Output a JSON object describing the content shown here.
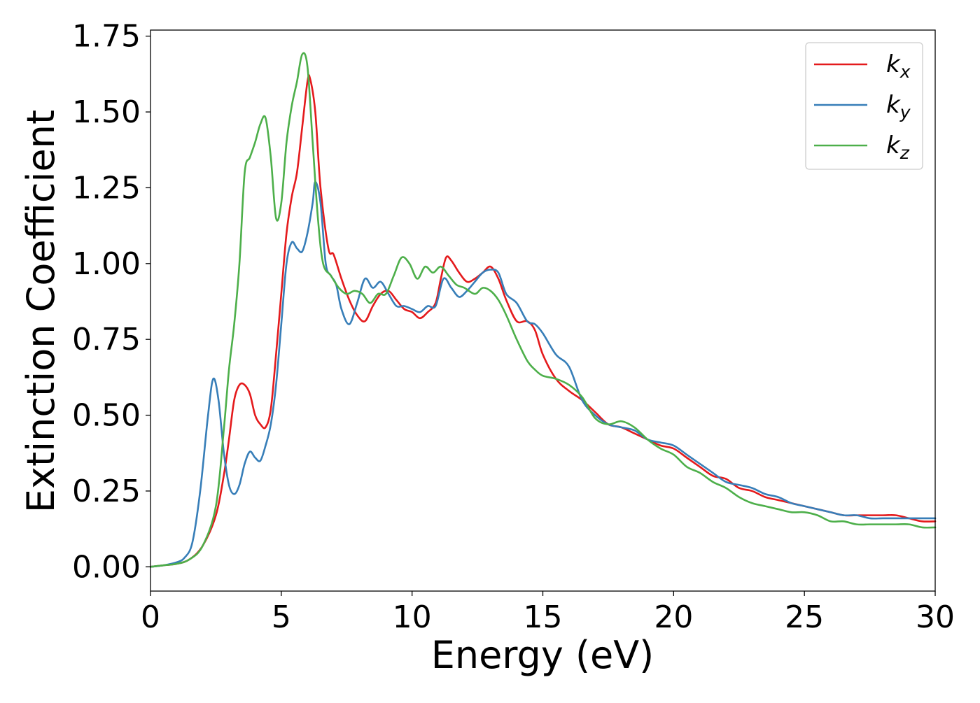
{
  "chart_data": {
    "type": "line",
    "xlabel": "Energy (eV)",
    "ylabel": "Extinction Coefficient",
    "xlim": [
      0,
      30
    ],
    "ylim": [
      -0.08,
      1.77
    ],
    "xticks": [
      0,
      5,
      10,
      15,
      20,
      25,
      30
    ],
    "xtick_labels": [
      "0",
      "5",
      "10",
      "15",
      "20",
      "25",
      "30"
    ],
    "yticks": [
      0.0,
      0.25,
      0.5,
      0.75,
      1.0,
      1.25,
      1.5,
      1.75
    ],
    "ytick_labels": [
      "0.00",
      "0.25",
      "0.50",
      "0.75",
      "1.00",
      "1.25",
      "1.50",
      "1.75"
    ],
    "grid": false,
    "legend_position": "top-right",
    "series": [
      {
        "name": "k_x",
        "legend_base": "k",
        "legend_sub": "x",
        "color": "#e41a1c",
        "points": [
          [
            0,
            0
          ],
          [
            0.5,
            0.005
          ],
          [
            1,
            0.01
          ],
          [
            1.5,
            0.025
          ],
          [
            2,
            0.07
          ],
          [
            2.5,
            0.17
          ],
          [
            2.8,
            0.3
          ],
          [
            3,
            0.42
          ],
          [
            3.2,
            0.55
          ],
          [
            3.4,
            0.6
          ],
          [
            3.6,
            0.6
          ],
          [
            3.8,
            0.57
          ],
          [
            4,
            0.5
          ],
          [
            4.2,
            0.47
          ],
          [
            4.4,
            0.46
          ],
          [
            4.6,
            0.52
          ],
          [
            4.8,
            0.7
          ],
          [
            5,
            0.9
          ],
          [
            5.2,
            1.1
          ],
          [
            5.4,
            1.22
          ],
          [
            5.6,
            1.3
          ],
          [
            5.8,
            1.45
          ],
          [
            6,
            1.6
          ],
          [
            6.1,
            1.61
          ],
          [
            6.3,
            1.5
          ],
          [
            6.5,
            1.25
          ],
          [
            6.8,
            1.05
          ],
          [
            7,
            1.03
          ],
          [
            7.3,
            0.95
          ],
          [
            7.6,
            0.88
          ],
          [
            7.9,
            0.83
          ],
          [
            8.2,
            0.81
          ],
          [
            8.5,
            0.86
          ],
          [
            8.8,
            0.9
          ],
          [
            9.1,
            0.91
          ],
          [
            9.4,
            0.88
          ],
          [
            9.7,
            0.85
          ],
          [
            10,
            0.84
          ],
          [
            10.3,
            0.82
          ],
          [
            10.6,
            0.84
          ],
          [
            10.9,
            0.87
          ],
          [
            11.1,
            0.95
          ],
          [
            11.3,
            1.02
          ],
          [
            11.5,
            1.01
          ],
          [
            11.8,
            0.97
          ],
          [
            12.1,
            0.94
          ],
          [
            12.4,
            0.95
          ],
          [
            12.7,
            0.97
          ],
          [
            13,
            0.99
          ],
          [
            13.3,
            0.95
          ],
          [
            13.6,
            0.88
          ],
          [
            14,
            0.81
          ],
          [
            14.4,
            0.81
          ],
          [
            14.7,
            0.78
          ],
          [
            15,
            0.7
          ],
          [
            15.5,
            0.62
          ],
          [
            16,
            0.58
          ],
          [
            16.5,
            0.55
          ],
          [
            17,
            0.51
          ],
          [
            17.5,
            0.47
          ],
          [
            18,
            0.46
          ],
          [
            18.5,
            0.44
          ],
          [
            19,
            0.42
          ],
          [
            19.5,
            0.4
          ],
          [
            20,
            0.39
          ],
          [
            20.5,
            0.36
          ],
          [
            21,
            0.33
          ],
          [
            21.5,
            0.3
          ],
          [
            22,
            0.29
          ],
          [
            22.5,
            0.26
          ],
          [
            23,
            0.25
          ],
          [
            23.5,
            0.23
          ],
          [
            24,
            0.22
          ],
          [
            24.5,
            0.21
          ],
          [
            25,
            0.2
          ],
          [
            25.5,
            0.19
          ],
          [
            26,
            0.18
          ],
          [
            26.5,
            0.17
          ],
          [
            27,
            0.17
          ],
          [
            27.5,
            0.17
          ],
          [
            28,
            0.17
          ],
          [
            28.5,
            0.17
          ],
          [
            29,
            0.16
          ],
          [
            29.5,
            0.15
          ],
          [
            30,
            0.15
          ]
        ]
      },
      {
        "name": "k_y",
        "legend_base": "k",
        "legend_sub": "y",
        "color": "#377eb8",
        "points": [
          [
            0,
            0
          ],
          [
            0.5,
            0.005
          ],
          [
            1,
            0.015
          ],
          [
            1.3,
            0.03
          ],
          [
            1.6,
            0.08
          ],
          [
            1.9,
            0.25
          ],
          [
            2.2,
            0.5
          ],
          [
            2.4,
            0.62
          ],
          [
            2.6,
            0.55
          ],
          [
            2.8,
            0.38
          ],
          [
            3,
            0.27
          ],
          [
            3.2,
            0.24
          ],
          [
            3.4,
            0.27
          ],
          [
            3.6,
            0.34
          ],
          [
            3.8,
            0.38
          ],
          [
            4,
            0.36
          ],
          [
            4.2,
            0.35
          ],
          [
            4.4,
            0.4
          ],
          [
            4.6,
            0.47
          ],
          [
            4.8,
            0.6
          ],
          [
            5,
            0.8
          ],
          [
            5.2,
            1.0
          ],
          [
            5.4,
            1.07
          ],
          [
            5.6,
            1.05
          ],
          [
            5.8,
            1.04
          ],
          [
            6,
            1.1
          ],
          [
            6.2,
            1.2
          ],
          [
            6.3,
            1.27
          ],
          [
            6.5,
            1.2
          ],
          [
            6.7,
            1.0
          ],
          [
            6.9,
            0.96
          ],
          [
            7.1,
            0.93
          ],
          [
            7.3,
            0.85
          ],
          [
            7.6,
            0.8
          ],
          [
            7.9,
            0.87
          ],
          [
            8.2,
            0.95
          ],
          [
            8.5,
            0.92
          ],
          [
            8.8,
            0.94
          ],
          [
            9.1,
            0.9
          ],
          [
            9.4,
            0.86
          ],
          [
            9.7,
            0.86
          ],
          [
            10,
            0.85
          ],
          [
            10.3,
            0.84
          ],
          [
            10.6,
            0.86
          ],
          [
            10.9,
            0.86
          ],
          [
            11.2,
            0.95
          ],
          [
            11.5,
            0.92
          ],
          [
            11.8,
            0.89
          ],
          [
            12.1,
            0.91
          ],
          [
            12.4,
            0.94
          ],
          [
            12.7,
            0.97
          ],
          [
            13,
            0.98
          ],
          [
            13.3,
            0.97
          ],
          [
            13.6,
            0.9
          ],
          [
            14,
            0.87
          ],
          [
            14.4,
            0.81
          ],
          [
            14.7,
            0.8
          ],
          [
            15,
            0.77
          ],
          [
            15.5,
            0.7
          ],
          [
            16,
            0.66
          ],
          [
            16.5,
            0.55
          ],
          [
            17,
            0.5
          ],
          [
            17.5,
            0.47
          ],
          [
            18,
            0.46
          ],
          [
            18.5,
            0.45
          ],
          [
            19,
            0.42
          ],
          [
            19.5,
            0.41
          ],
          [
            20,
            0.4
          ],
          [
            20.5,
            0.37
          ],
          [
            21,
            0.34
          ],
          [
            21.5,
            0.31
          ],
          [
            22,
            0.28
          ],
          [
            22.5,
            0.27
          ],
          [
            23,
            0.26
          ],
          [
            23.5,
            0.24
          ],
          [
            24,
            0.23
          ],
          [
            24.5,
            0.21
          ],
          [
            25,
            0.2
          ],
          [
            25.5,
            0.19
          ],
          [
            26,
            0.18
          ],
          [
            26.5,
            0.17
          ],
          [
            27,
            0.17
          ],
          [
            27.5,
            0.16
          ],
          [
            28,
            0.16
          ],
          [
            28.5,
            0.16
          ],
          [
            29,
            0.16
          ],
          [
            29.5,
            0.16
          ],
          [
            30,
            0.16
          ]
        ]
      },
      {
        "name": "k_z",
        "legend_base": "k",
        "legend_sub": "z",
        "color": "#4daf4a",
        "points": [
          [
            0,
            0
          ],
          [
            0.5,
            0.005
          ],
          [
            1,
            0.01
          ],
          [
            1.5,
            0.025
          ],
          [
            2,
            0.07
          ],
          [
            2.5,
            0.2
          ],
          [
            2.8,
            0.45
          ],
          [
            3,
            0.65
          ],
          [
            3.2,
            0.8
          ],
          [
            3.4,
            1.0
          ],
          [
            3.6,
            1.3
          ],
          [
            3.8,
            1.35
          ],
          [
            4,
            1.4
          ],
          [
            4.2,
            1.46
          ],
          [
            4.4,
            1.48
          ],
          [
            4.6,
            1.35
          ],
          [
            4.8,
            1.15
          ],
          [
            5,
            1.2
          ],
          [
            5.2,
            1.4
          ],
          [
            5.4,
            1.52
          ],
          [
            5.6,
            1.6
          ],
          [
            5.8,
            1.69
          ],
          [
            6,
            1.65
          ],
          [
            6.2,
            1.4
          ],
          [
            6.4,
            1.15
          ],
          [
            6.6,
            1.0
          ],
          [
            6.9,
            0.96
          ],
          [
            7.2,
            0.92
          ],
          [
            7.5,
            0.9
          ],
          [
            7.8,
            0.91
          ],
          [
            8.1,
            0.9
          ],
          [
            8.4,
            0.87
          ],
          [
            8.7,
            0.9
          ],
          [
            9,
            0.9
          ],
          [
            9.3,
            0.96
          ],
          [
            9.6,
            1.02
          ],
          [
            9.9,
            1.0
          ],
          [
            10.2,
            0.95
          ],
          [
            10.5,
            0.99
          ],
          [
            10.8,
            0.97
          ],
          [
            11.1,
            0.99
          ],
          [
            11.4,
            0.96
          ],
          [
            11.7,
            0.93
          ],
          [
            12,
            0.92
          ],
          [
            12.4,
            0.9
          ],
          [
            12.7,
            0.92
          ],
          [
            13,
            0.91
          ],
          [
            13.3,
            0.88
          ],
          [
            13.6,
            0.83
          ],
          [
            14,
            0.75
          ],
          [
            14.4,
            0.68
          ],
          [
            14.7,
            0.65
          ],
          [
            15,
            0.63
          ],
          [
            15.5,
            0.62
          ],
          [
            16,
            0.6
          ],
          [
            16.5,
            0.56
          ],
          [
            17,
            0.49
          ],
          [
            17.5,
            0.47
          ],
          [
            18,
            0.48
          ],
          [
            18.5,
            0.46
          ],
          [
            19,
            0.42
          ],
          [
            19.5,
            0.39
          ],
          [
            20,
            0.37
          ],
          [
            20.5,
            0.33
          ],
          [
            21,
            0.31
          ],
          [
            21.5,
            0.28
          ],
          [
            22,
            0.26
          ],
          [
            22.5,
            0.23
          ],
          [
            23,
            0.21
          ],
          [
            23.5,
            0.2
          ],
          [
            24,
            0.19
          ],
          [
            24.5,
            0.18
          ],
          [
            25,
            0.18
          ],
          [
            25.5,
            0.17
          ],
          [
            26,
            0.15
          ],
          [
            26.5,
            0.15
          ],
          [
            27,
            0.14
          ],
          [
            27.5,
            0.14
          ],
          [
            28,
            0.14
          ],
          [
            28.5,
            0.14
          ],
          [
            29,
            0.14
          ],
          [
            29.5,
            0.13
          ],
          [
            30,
            0.13
          ]
        ]
      }
    ]
  }
}
